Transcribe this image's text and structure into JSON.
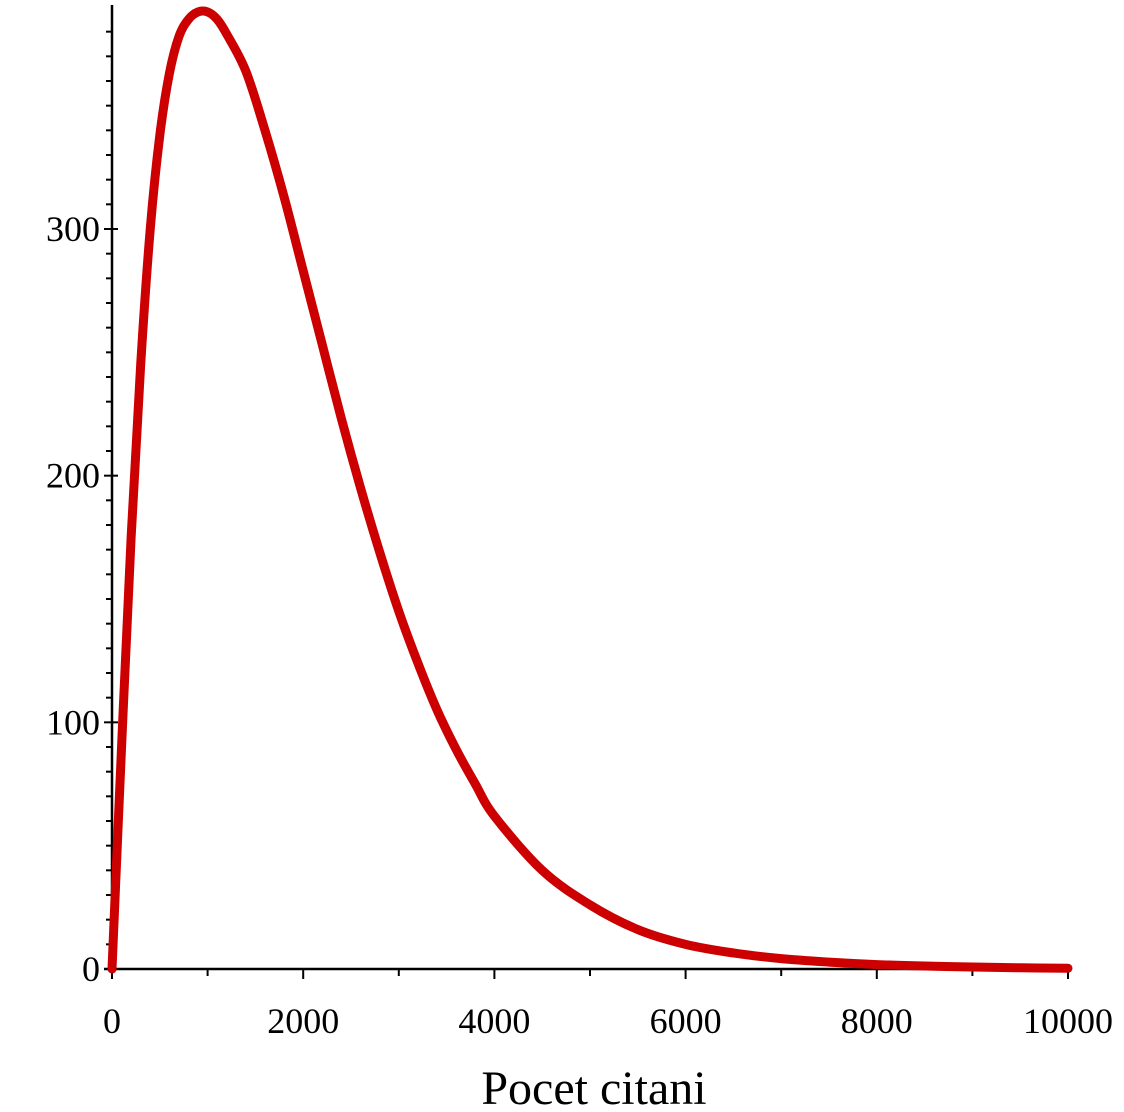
{
  "chart_data": {
    "type": "line",
    "title": "",
    "xlabel": "Pocet citani",
    "ylabel": "",
    "xlim": [
      0,
      10000
    ],
    "ylim": [
      0,
      390
    ],
    "xticks": [
      0,
      2000,
      4000,
      6000,
      8000,
      10000
    ],
    "xtick_labels": [
      "0",
      "2000",
      "4000",
      "6000",
      "8000",
      "10000"
    ],
    "yticks": [
      0,
      100,
      200,
      300
    ],
    "ytick_labels": [
      "0",
      "100",
      "200",
      "300"
    ],
    "grid": false,
    "series": [
      {
        "color": "#cc0000",
        "x": [
          0,
          100,
          200,
          300,
          400,
          500,
          600,
          700,
          800,
          900,
          1000,
          1100,
          1200,
          1400,
          1600,
          1800,
          2000,
          2200,
          2400,
          2600,
          2800,
          3000,
          3200,
          3400,
          3600,
          3800,
          4000,
          4500,
          5000,
          5500,
          6000,
          6500,
          7000,
          7500,
          8000,
          8500,
          9000,
          9500,
          10000
        ],
        "y": [
          0,
          90,
          175,
          245,
          300,
          338,
          363,
          378,
          385,
          388,
          388,
          385,
          379,
          364,
          340,
          313,
          283,
          253,
          223,
          195,
          169,
          145,
          124,
          105,
          89,
          75,
          62,
          40,
          26,
          16,
          10,
          6.5,
          4.2,
          2.8,
          1.8,
          1.2,
          0.8,
          0.5,
          0.3
        ]
      }
    ]
  }
}
